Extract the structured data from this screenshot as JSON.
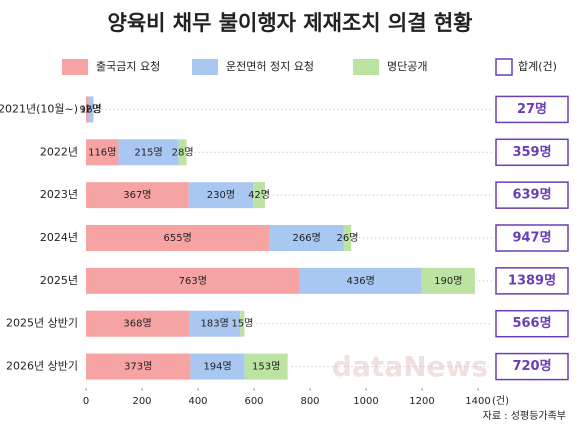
{
  "chart_data": {
    "type": "stacked-bar-horizontal",
    "title": "양육비 채무 불이행자 제재조치 의결 현황",
    "categories": [
      "2021년(10월~)",
      "2022년",
      "2023년",
      "2024년",
      "2025년",
      "2025년 상반기",
      "2026년 상반기"
    ],
    "series": [
      {
        "name": "출국금지 요청",
        "color": "#f5a3a3",
        "values": [
          9,
          116,
          367,
          655,
          763,
          368,
          373
        ],
        "value_labels": [
          "9명",
          "116명",
          "367명",
          "655명",
          "763명",
          "368명",
          "373명"
        ]
      },
      {
        "name": "운전면허 정지 요청",
        "color": "#a8c8f2",
        "values": [
          16,
          215,
          230,
          266,
          436,
          183,
          194
        ],
        "value_labels": [
          "16명",
          "215명",
          "230명",
          "266명",
          "436명",
          "183명",
          "194명"
        ]
      },
      {
        "name": "명단공개",
        "color": "#bde3a2",
        "values": [
          2,
          28,
          42,
          26,
          190,
          15,
          153
        ],
        "value_labels": [
          "2명",
          "28명",
          "42명",
          "26명",
          "190명",
          "15명",
          "153명"
        ]
      }
    ],
    "totals": {
      "name": "합계(건)",
      "color": "#6a3fb5",
      "values": [
        27,
        359,
        639,
        947,
        1389,
        566,
        720
      ],
      "value_labels": [
        "27명",
        "359명",
        "639명",
        "947명",
        "1389명",
        "566명",
        "720명"
      ]
    },
    "xlim": [
      0,
      1400
    ],
    "xticks": [
      0,
      200,
      400,
      600,
      800,
      1000,
      1200,
      1400
    ],
    "x_unit": "(건)",
    "watermark": "dataNews",
    "source": "자료 : 성평등가족부"
  }
}
